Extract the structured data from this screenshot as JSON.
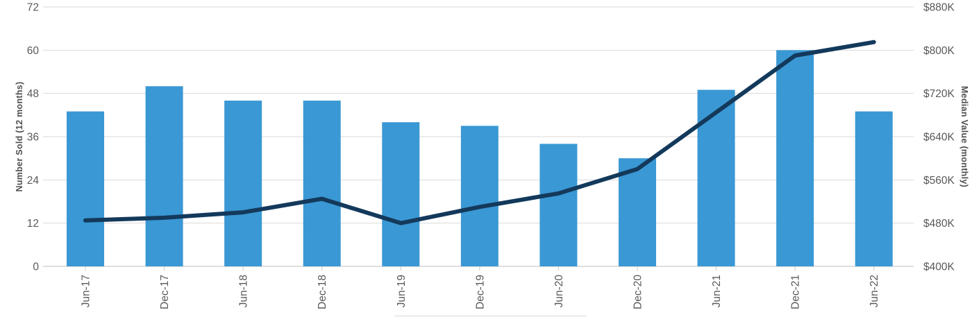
{
  "chart_data": {
    "type": "combo",
    "title": "",
    "categories": [
      "Jun-17",
      "Dec-17",
      "Jun-18",
      "Dec-18",
      "Jun-19",
      "Dec-19",
      "Jun-20",
      "Dec-20",
      "Jun-21",
      "Dec-21",
      "Jun-22"
    ],
    "series": [
      {
        "name": "Number Sold",
        "type": "bar",
        "axis": "left",
        "values": [
          43,
          50,
          46,
          46,
          40,
          39,
          34,
          30,
          49,
          60,
          43
        ]
      },
      {
        "name": "Median Value",
        "type": "line",
        "axis": "right",
        "unit": "thousand USD",
        "values": [
          485,
          490,
          500,
          525,
          480,
          510,
          535,
          580,
          685,
          790,
          815
        ]
      }
    ],
    "left_axis": {
      "label": "Number Sold (12 months)",
      "min": 0,
      "max": 72,
      "tick_values": [
        0,
        12,
        24,
        36,
        48,
        60,
        72
      ],
      "tick_labels": [
        "0",
        "12",
        "24",
        "36",
        "48",
        "60",
        "72"
      ]
    },
    "right_axis": {
      "label": "Median Value (monthly)",
      "min_k": 400,
      "max_k": 880,
      "tick_values_k": [
        400,
        480,
        560,
        640,
        720,
        800,
        880
      ],
      "tick_labels": [
        "$400K",
        "$480K",
        "$560K",
        "$640K",
        "$720K",
        "$800K",
        "$880K"
      ]
    },
    "grid": true,
    "legend_position": "bottom",
    "legend_cut_off": true
  },
  "colors": {
    "bar": "#3A98D4",
    "line": "#13395B",
    "gridline": "#D9D9D9",
    "axis_baseline": "#BFBFBF",
    "tick_mark": "#C8C8C8",
    "tick_text": "#595959",
    "axis_title_text": "#4F4F4F",
    "background": "#FFFFFF"
  }
}
